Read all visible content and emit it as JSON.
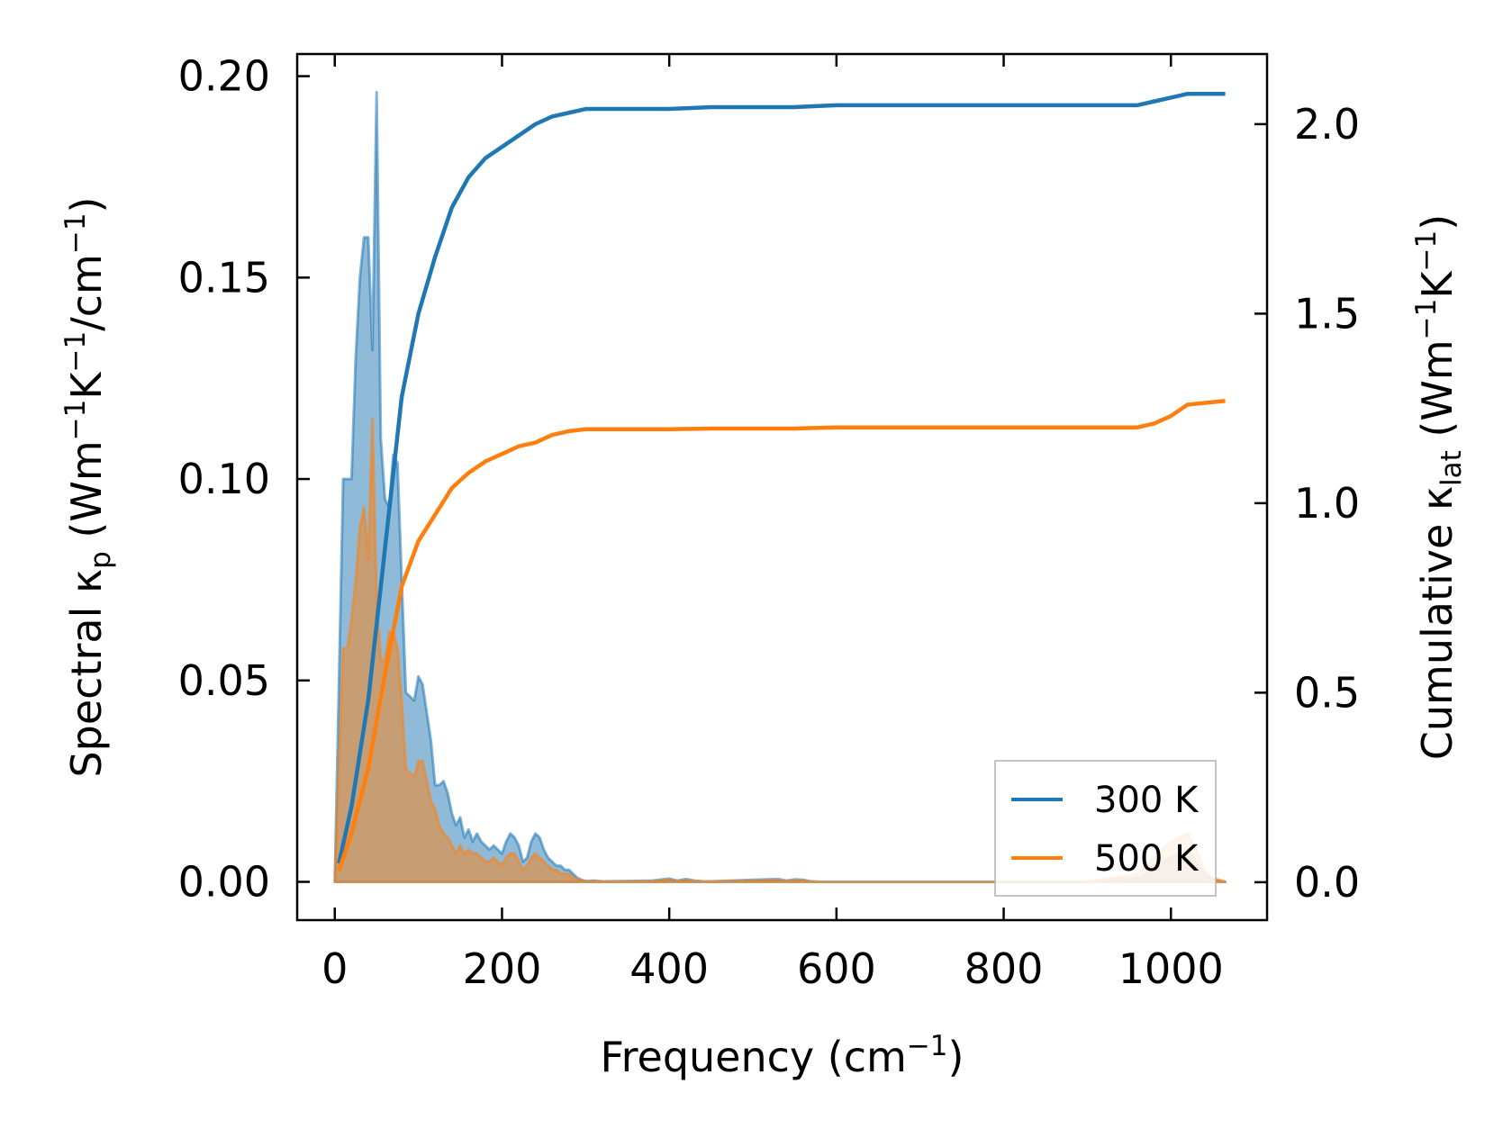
{
  "chart_data": {
    "type": "line",
    "x_axis": {
      "label": "Frequency (cm",
      "label_sup": "−1",
      "label_end": ")",
      "range": [
        -45,
        1115
      ],
      "ticks": [
        0,
        200,
        400,
        600,
        800,
        1000
      ],
      "tick_labels": [
        "0",
        "200",
        "400",
        "600",
        "800",
        "1000"
      ]
    },
    "y_left": {
      "label_parts": [
        "Spectral κ",
        "p",
        " (Wm",
        "−1",
        "K",
        "−1",
        "/cm",
        "−1",
        ")"
      ],
      "range": [
        -0.0095,
        0.2055
      ],
      "ticks": [
        0.0,
        0.05,
        0.1,
        0.15,
        0.2
      ],
      "tick_labels": [
        "0.00",
        "0.05",
        "0.10",
        "0.15",
        "0.20"
      ]
    },
    "y_right": {
      "label_parts": [
        "Cumulative κ",
        "lat",
        " (Wm",
        "−1",
        "K",
        "−1",
        ")"
      ],
      "range": [
        -0.1,
        2.185
      ],
      "ticks": [
        0.0,
        0.5,
        1.0,
        1.5,
        2.0
      ],
      "tick_labels": [
        "0.0",
        "0.5",
        "1.0",
        "1.5",
        "2.0"
      ]
    },
    "legend": {
      "position": "lower-right",
      "entries": [
        "300 K",
        "500 K"
      ]
    },
    "colors": {
      "300 K": "#1f77b4",
      "500 K": "#ff7f0e"
    },
    "series": [
      {
        "name": "300 K",
        "axis": "right",
        "kind": "line",
        "x": [
          5,
          20,
          40,
          60,
          80,
          100,
          120,
          140,
          160,
          180,
          200,
          220,
          240,
          260,
          280,
          300,
          350,
          400,
          450,
          500,
          550,
          600,
          700,
          800,
          900,
          960,
          980,
          1000,
          1020,
          1065
        ],
        "y": [
          0.05,
          0.2,
          0.48,
          0.88,
          1.28,
          1.5,
          1.65,
          1.78,
          1.86,
          1.91,
          1.94,
          1.97,
          2.0,
          2.02,
          2.03,
          2.04,
          2.04,
          2.04,
          2.045,
          2.045,
          2.045,
          2.05,
          2.05,
          2.05,
          2.05,
          2.05,
          2.06,
          2.07,
          2.08,
          2.08
        ]
      },
      {
        "name": "500 K",
        "axis": "right",
        "kind": "line",
        "x": [
          5,
          20,
          40,
          60,
          80,
          100,
          120,
          140,
          160,
          180,
          200,
          220,
          240,
          260,
          280,
          300,
          350,
          400,
          450,
          500,
          550,
          600,
          700,
          800,
          900,
          960,
          980,
          1000,
          1020,
          1065
        ],
        "y": [
          0.03,
          0.13,
          0.3,
          0.55,
          0.78,
          0.9,
          0.97,
          1.04,
          1.08,
          1.11,
          1.13,
          1.15,
          1.16,
          1.18,
          1.19,
          1.195,
          1.195,
          1.195,
          1.197,
          1.197,
          1.197,
          1.2,
          1.2,
          1.2,
          1.2,
          1.2,
          1.21,
          1.23,
          1.26,
          1.27
        ]
      },
      {
        "name": "300 K",
        "axis": "left",
        "kind": "area",
        "x": [
          0,
          5,
          10,
          15,
          20,
          25,
          30,
          35,
          40,
          45,
          50,
          55,
          60,
          65,
          70,
          75,
          80,
          85,
          90,
          95,
          100,
          105,
          110,
          115,
          120,
          125,
          130,
          135,
          140,
          145,
          150,
          155,
          160,
          165,
          170,
          175,
          180,
          185,
          190,
          195,
          200,
          205,
          210,
          215,
          220,
          225,
          230,
          235,
          240,
          245,
          250,
          255,
          260,
          265,
          270,
          275,
          280,
          285,
          290,
          295,
          300,
          310,
          320,
          350,
          380,
          400,
          410,
          420,
          430,
          440,
          450,
          500,
          530,
          540,
          550,
          560,
          570,
          580,
          600,
          700,
          800,
          900,
          960,
          970,
          980,
          990,
          1000,
          1010,
          1020,
          1030,
          1040,
          1050,
          1065
        ],
        "y": [
          0,
          0.05,
          0.1,
          0.1,
          0.1,
          0.13,
          0.15,
          0.16,
          0.16,
          0.132,
          0.196,
          0.11,
          0.095,
          0.093,
          0.106,
          0.104,
          0.075,
          0.047,
          0.046,
          0.045,
          0.051,
          0.049,
          0.042,
          0.035,
          0.024,
          0.024,
          0.025,
          0.022,
          0.017,
          0.014,
          0.016,
          0.011,
          0.013,
          0.01,
          0.012,
          0.01,
          0.009,
          0.008,
          0.009,
          0.008,
          0.007,
          0.01,
          0.012,
          0.011,
          0.009,
          0.005,
          0.006,
          0.01,
          0.012,
          0.011,
          0.008,
          0.006,
          0.005,
          0.004,
          0.004,
          0.003,
          0.003,
          0.002,
          0.001,
          0.0005,
          0.0002,
          0.0003,
          0.0001,
          0.0002,
          0.0003,
          0.0008,
          0.0003,
          0.0007,
          0.0003,
          0.0001,
          0.0001,
          0.0005,
          0.0007,
          0.0003,
          0.0006,
          0.0005,
          0.0001,
          0,
          0,
          0,
          0,
          0,
          0.001,
          0.002,
          0.004,
          0.005,
          0.006,
          0.007,
          0.008,
          0.005,
          0.002,
          0.0005,
          0
        ]
      },
      {
        "name": "500 K",
        "axis": "left",
        "kind": "area",
        "x": [
          0,
          5,
          10,
          15,
          20,
          25,
          30,
          35,
          40,
          45,
          50,
          55,
          60,
          65,
          70,
          75,
          80,
          85,
          90,
          95,
          100,
          105,
          110,
          115,
          120,
          125,
          130,
          135,
          140,
          145,
          150,
          155,
          160,
          165,
          170,
          175,
          180,
          185,
          190,
          195,
          200,
          205,
          210,
          215,
          220,
          225,
          230,
          235,
          240,
          245,
          250,
          255,
          260,
          265,
          270,
          275,
          280,
          285,
          290,
          295,
          300,
          310,
          320,
          350,
          380,
          400,
          410,
          420,
          430,
          440,
          450,
          500,
          530,
          540,
          550,
          560,
          570,
          580,
          600,
          700,
          800,
          900,
          960,
          970,
          980,
          990,
          1000,
          1010,
          1020,
          1030,
          1040,
          1050,
          1065
        ],
        "y": [
          0,
          0.03,
          0.058,
          0.058,
          0.065,
          0.075,
          0.088,
          0.093,
          0.08,
          0.115,
          0.07,
          0.055,
          0.055,
          0.062,
          0.062,
          0.058,
          0.045,
          0.028,
          0.027,
          0.026,
          0.03,
          0.03,
          0.025,
          0.02,
          0.018,
          0.014,
          0.012,
          0.011,
          0.009,
          0.007,
          0.009,
          0.007,
          0.008,
          0.007,
          0.007,
          0.006,
          0.005,
          0.005,
          0.006,
          0.005,
          0.004,
          0.006,
          0.007,
          0.007,
          0.005,
          0.003,
          0.004,
          0.006,
          0.007,
          0.006,
          0.005,
          0.004,
          0.003,
          0.003,
          0.002,
          0.002,
          0.002,
          0.001,
          0.0007,
          0.0003,
          0.0001,
          0.0002,
          0.0001,
          0.0001,
          0.0002,
          0.0005,
          0.0002,
          0.0004,
          0.0002,
          0.0001,
          0.0001,
          0.0003,
          0.0004,
          0.0002,
          0.0004,
          0.0003,
          0.0001,
          0,
          0,
          0,
          0,
          0,
          0.002,
          0.004,
          0.006,
          0.008,
          0.01,
          0.011,
          0.012,
          0.008,
          0.003,
          0.001,
          0
        ]
      }
    ]
  }
}
